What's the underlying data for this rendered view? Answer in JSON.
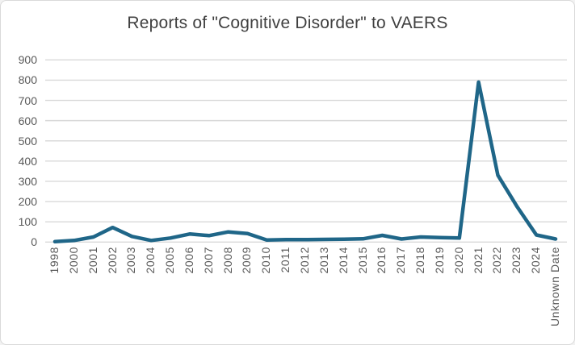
{
  "window": {
    "background": "#ffffff",
    "border_color": "#d9d9d9"
  },
  "chart_data": {
    "type": "line",
    "title": "Reports of \"Cognitive Disorder\" to VAERS",
    "categories": [
      "1998",
      "2000",
      "2001",
      "2002",
      "2003",
      "2004",
      "2005",
      "2006",
      "2007",
      "2008",
      "2009",
      "2010",
      "2011",
      "2012",
      "2013",
      "2014",
      "2015",
      "2016",
      "2017",
      "2018",
      "2019",
      "2020",
      "2021",
      "2022",
      "2023",
      "2024",
      "Unknown Date"
    ],
    "values": [
      2,
      8,
      25,
      72,
      28,
      8,
      20,
      40,
      32,
      50,
      42,
      10,
      12,
      12,
      13,
      14,
      16,
      33,
      15,
      25,
      22,
      20,
      790,
      330,
      175,
      35,
      15
    ],
    "series": [
      {
        "name": "Reports of Cognitive Disorder",
        "values": [
          2,
          8,
          25,
          72,
          28,
          8,
          20,
          40,
          32,
          50,
          42,
          10,
          12,
          12,
          13,
          14,
          16,
          33,
          15,
          25,
          22,
          20,
          790,
          330,
          175,
          35,
          15
        ]
      }
    ],
    "xlabel": "",
    "ylabel": "",
    "ylim": [
      0,
      900
    ],
    "ytick_interval": 100,
    "yticks": [
      0,
      100,
      200,
      300,
      400,
      500,
      600,
      700,
      800,
      900
    ],
    "grid": "horizontal",
    "legend": "none",
    "x_label_rotation": "rotated-up-90",
    "colors": {
      "line": "#1f6688",
      "gridline": "#d9d9d9",
      "title_text": "#404040",
      "tick_text": "#595959"
    }
  }
}
